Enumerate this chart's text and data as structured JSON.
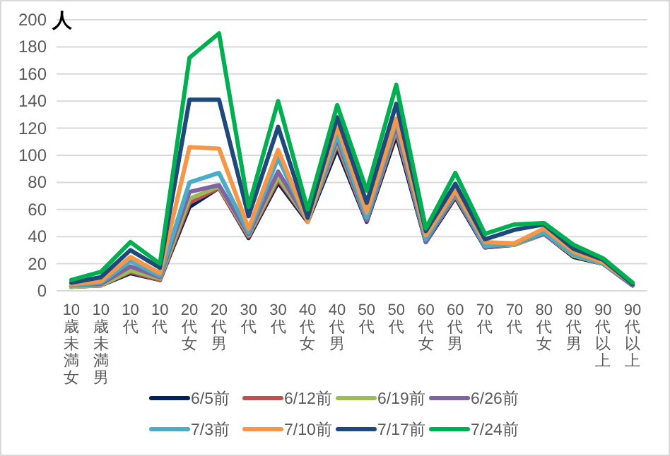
{
  "chart_data": {
    "type": "line",
    "ylabel": "人",
    "categories": [
      "10歳未満女",
      "10歳未満男",
      "10代",
      "10代",
      "20代女",
      "20代男",
      "30代",
      "30代",
      "40代女",
      "40代男",
      "50代",
      "50代",
      "60代女",
      "60代男",
      "70代",
      "70代",
      "80代女",
      "80代男",
      "90代以上",
      "90代以上"
    ],
    "series": [
      {
        "name": "6/5前",
        "color": "#002060",
        "values": [
          3,
          4,
          13,
          8,
          62,
          76,
          39,
          80,
          51,
          105,
          51,
          115,
          36,
          69,
          32,
          34,
          42,
          25,
          20,
          4
        ]
      },
      {
        "name": "6/12前",
        "color": "#c0504d",
        "values": [
          3,
          4,
          14,
          8,
          65,
          76,
          40,
          82,
          52,
          108,
          52,
          118,
          37,
          70,
          33,
          34,
          42,
          26,
          20,
          4
        ]
      },
      {
        "name": "6/19前",
        "color": "#9bbb59",
        "values": [
          3,
          4,
          15,
          9,
          68,
          77,
          41,
          84,
          52,
          110,
          52,
          120,
          37,
          71,
          33,
          34,
          42,
          26,
          20,
          4
        ]
      },
      {
        "name": "6/26前",
        "color": "#8064a2",
        "values": [
          4,
          5,
          18,
          10,
          73,
          78,
          42,
          88,
          52,
          112,
          52,
          122,
          36,
          72,
          32,
          35,
          42,
          27,
          20,
          4
        ]
      },
      {
        "name": "7/3前",
        "color": "#4bacc6",
        "values": [
          4,
          6,
          22,
          11,
          80,
          87,
          43,
          98,
          51,
          115,
          54,
          125,
          38,
          73,
          33,
          35,
          43,
          27,
          20,
          5
        ]
      },
      {
        "name": "7/10前",
        "color": "#f79646",
        "values": [
          5,
          7,
          25,
          13,
          106,
          105,
          46,
          104,
          51,
          121,
          58,
          127,
          41,
          74,
          36,
          35,
          46,
          29,
          21,
          5
        ]
      },
      {
        "name": "7/17前",
        "color": "#1f497d",
        "values": [
          6,
          10,
          30,
          17,
          141,
          141,
          55,
          121,
          54,
          128,
          65,
          138,
          44,
          79,
          38,
          45,
          49,
          31,
          23,
          5
        ]
      },
      {
        "name": "7/24前",
        "color": "#00b050",
        "values": [
          8,
          14,
          36,
          20,
          172,
          190,
          62,
          140,
          60,
          137,
          74,
          152,
          46,
          87,
          42,
          49,
          50,
          34,
          24,
          6
        ]
      }
    ],
    "ylim": [
      0,
      200
    ],
    "yticks": [
      0,
      20,
      40,
      60,
      80,
      100,
      120,
      140,
      160,
      180,
      200
    ],
    "grid": "y",
    "legend": "bottom",
    "marker": "none",
    "line_style": "solid"
  }
}
